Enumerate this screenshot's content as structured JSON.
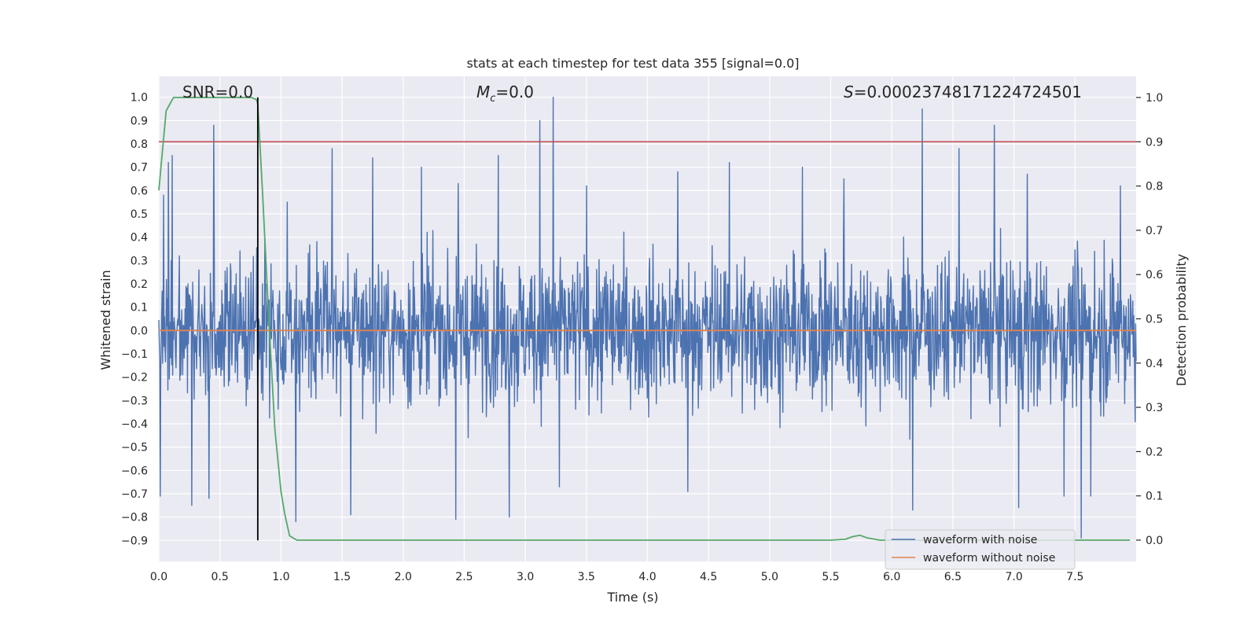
{
  "chart_data": {
    "type": "line",
    "title": "stats at each timestep for test data 355 [signal=0.0]",
    "xlabel": "Time (s)",
    "ylabel": "Whitened strain",
    "y2label": "Detection probability",
    "xlim": [
      0.0,
      8.0
    ],
    "ylim": [
      -0.99,
      1.09
    ],
    "y2lim": [
      -0.048,
      1.048
    ],
    "x_ticks": [
      "0.0",
      "0.5",
      "1.0",
      "1.5",
      "2.0",
      "2.5",
      "3.0",
      "3.5",
      "4.0",
      "4.5",
      "5.0",
      "5.5",
      "6.0",
      "6.5",
      "7.0",
      "7.5"
    ],
    "y_ticks": [
      "1.0",
      "0.9",
      "0.8",
      "0.7",
      "0.6",
      "0.5",
      "0.4",
      "0.3",
      "0.2",
      "0.1",
      "0.0",
      "−0.1",
      "−0.2",
      "−0.3",
      "−0.4",
      "−0.5",
      "−0.6",
      "−0.7",
      "−0.8",
      "−0.9"
    ],
    "y2_ticks": [
      "1.0",
      "0.9",
      "0.8",
      "0.7",
      "0.6",
      "0.5",
      "0.4",
      "0.3",
      "0.2",
      "0.1",
      "0.0"
    ],
    "grid": true,
    "legend_position": "lower-right",
    "annotations": {
      "snr": "SNR=0.0",
      "mc_symbol": "M",
      "mc_sub": "c",
      "mc_value": "=0.0",
      "s_symbol": "S",
      "s_value": "=0.00023748171224724501"
    },
    "threshold_line": {
      "axis": "y2",
      "value": 0.9,
      "color": "#c44e52"
    },
    "marker_line": {
      "axis": "x",
      "value": 0.81,
      "ymin": -0.9,
      "ymax": 1.0,
      "color": "#000000"
    },
    "series": [
      {
        "name": "waveform with noise",
        "axis": "y",
        "color": "#4c72b0",
        "description_kind": "noise",
        "x_range": [
          0.0,
          8.0
        ],
        "spikes_top": [
          {
            "x": 0.04,
            "y": 0.58
          },
          {
            "x": 0.08,
            "y": 0.72
          },
          {
            "x": 0.11,
            "y": 0.75
          },
          {
            "x": 0.45,
            "y": 0.88
          },
          {
            "x": 1.05,
            "y": 0.55
          },
          {
            "x": 1.42,
            "y": 0.78
          },
          {
            "x": 1.75,
            "y": 0.74
          },
          {
            "x": 2.15,
            "y": 0.7
          },
          {
            "x": 2.45,
            "y": 0.63
          },
          {
            "x": 2.78,
            "y": 0.75
          },
          {
            "x": 3.12,
            "y": 0.9
          },
          {
            "x": 3.23,
            "y": 1.0
          },
          {
            "x": 3.5,
            "y": 0.62
          },
          {
            "x": 4.25,
            "y": 0.68
          },
          {
            "x": 4.67,
            "y": 0.72
          },
          {
            "x": 5.27,
            "y": 0.7
          },
          {
            "x": 5.61,
            "y": 0.65
          },
          {
            "x": 6.25,
            "y": 0.95
          },
          {
            "x": 6.55,
            "y": 0.78
          },
          {
            "x": 6.84,
            "y": 0.88
          },
          {
            "x": 7.11,
            "y": 0.67
          },
          {
            "x": 7.55,
            "y": 0.55
          },
          {
            "x": 7.87,
            "y": 0.62
          }
        ],
        "spikes_bottom": [
          {
            "x": 0.01,
            "y": -0.71
          },
          {
            "x": 0.27,
            "y": -0.75
          },
          {
            "x": 0.41,
            "y": -0.72
          },
          {
            "x": 1.12,
            "y": -0.82
          },
          {
            "x": 1.57,
            "y": -0.79
          },
          {
            "x": 2.43,
            "y": -0.81
          },
          {
            "x": 2.87,
            "y": -0.8
          },
          {
            "x": 3.28,
            "y": -0.67
          },
          {
            "x": 4.33,
            "y": -0.69
          },
          {
            "x": 6.17,
            "y": -0.77
          },
          {
            "x": 7.04,
            "y": -0.76
          },
          {
            "x": 7.41,
            "y": -0.71
          },
          {
            "x": 7.55,
            "y": -0.89
          },
          {
            "x": 7.63,
            "y": -0.71
          }
        ]
      },
      {
        "name": "waveform without noise",
        "axis": "y",
        "color": "#dd8452",
        "x": [
          0.0,
          8.0
        ],
        "y": [
          0.0,
          0.0
        ]
      },
      {
        "name": "",
        "axis": "y2",
        "color": "#55a868",
        "x": [
          0.0,
          0.03,
          0.06,
          0.12,
          0.2,
          0.4,
          0.6,
          0.7,
          0.76,
          0.8,
          0.81,
          0.85,
          0.9,
          0.95,
          1.0,
          1.03,
          1.07,
          1.13,
          1.5,
          2.5,
          3.5,
          4.5,
          5.5,
          5.62,
          5.68,
          5.74,
          5.8,
          5.9,
          6.2,
          7.0,
          7.95
        ],
        "y": [
          0.79,
          0.88,
          0.97,
          1.0,
          1.0,
          1.0,
          1.0,
          1.0,
          1.0,
          0.995,
          0.985,
          0.78,
          0.5,
          0.25,
          0.11,
          0.06,
          0.01,
          0.0,
          0.0,
          0.0,
          0.0,
          0.0,
          0.0,
          0.002,
          0.008,
          0.011,
          0.005,
          0.0,
          0.0,
          0.0,
          0.0
        ]
      }
    ]
  }
}
